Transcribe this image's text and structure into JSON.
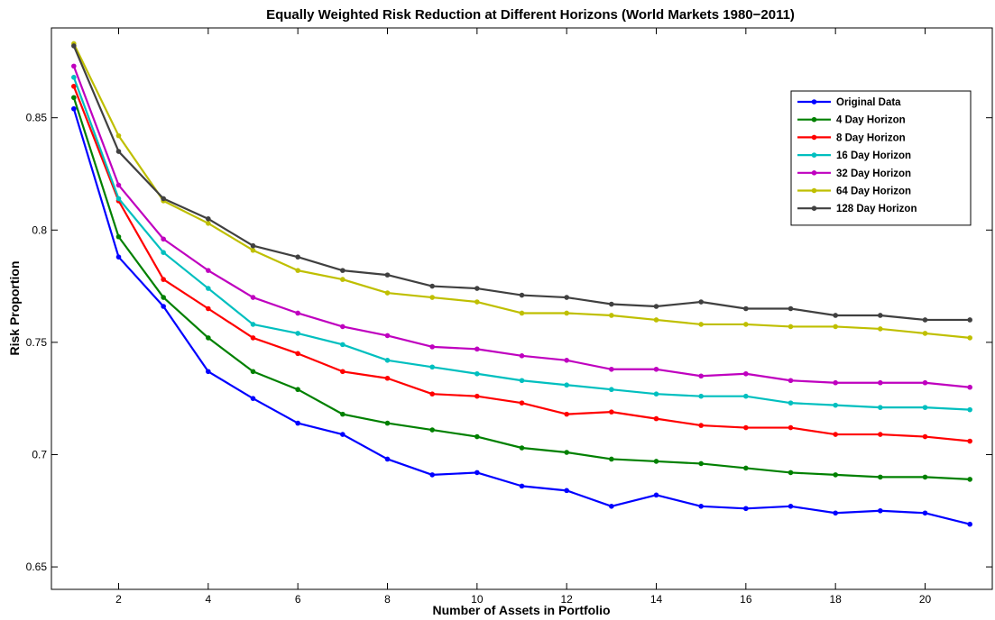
{
  "chart_data": {
    "type": "line",
    "title": "Equally Weighted Risk Reduction at Different Horizons (World Markets 1980−2011)",
    "xlabel": "Number of Assets in Portfolio",
    "ylabel": "Risk Proportion",
    "xlim": [
      0.5,
      21.5
    ],
    "ylim": [
      0.64,
      0.89
    ],
    "x_ticks": [
      2,
      4,
      6,
      8,
      10,
      12,
      14,
      16,
      18,
      20
    ],
    "x_tick_labels": [
      "2",
      "4",
      "6",
      "8",
      "10",
      "12",
      "14",
      "16",
      "18",
      "20"
    ],
    "y_ticks": [
      0.65,
      0.7,
      0.75,
      0.8,
      0.85
    ],
    "y_tick_labels": [
      "0.65",
      "0.7",
      "0.75",
      "0.8",
      "0.85"
    ],
    "grid": false,
    "legend_position": "top-right",
    "x": [
      1,
      2,
      3,
      4,
      5,
      6,
      7,
      8,
      9,
      10,
      11,
      12,
      13,
      14,
      15,
      16,
      17,
      18,
      19,
      20,
      21
    ],
    "series": [
      {
        "name": "Original Data",
        "color": "#0000ff",
        "values": [
          0.854,
          0.788,
          0.766,
          0.737,
          0.725,
          0.714,
          0.709,
          0.698,
          0.691,
          0.692,
          0.686,
          0.684,
          0.677,
          0.682,
          0.677,
          0.676,
          0.677,
          0.674,
          0.675,
          0.674,
          0.669
        ]
      },
      {
        "name": "4 Day Horizon",
        "color": "#008000",
        "values": [
          0.859,
          0.797,
          0.77,
          0.752,
          0.737,
          0.729,
          0.718,
          0.714,
          0.711,
          0.708,
          0.703,
          0.701,
          0.698,
          0.697,
          0.696,
          0.694,
          0.692,
          0.691,
          0.69,
          0.69,
          0.689
        ]
      },
      {
        "name": "8 Day Horizon",
        "color": "#ff0000",
        "values": [
          0.864,
          0.813,
          0.778,
          0.765,
          0.752,
          0.745,
          0.737,
          0.734,
          0.727,
          0.726,
          0.723,
          0.718,
          0.719,
          0.716,
          0.713,
          0.712,
          0.712,
          0.709,
          0.709,
          0.708,
          0.706
        ]
      },
      {
        "name": "16 Day Horizon",
        "color": "#00bfbf",
        "values": [
          0.868,
          0.814,
          0.79,
          0.774,
          0.758,
          0.754,
          0.749,
          0.742,
          0.739,
          0.736,
          0.733,
          0.731,
          0.729,
          0.727,
          0.726,
          0.726,
          0.723,
          0.722,
          0.721,
          0.721,
          0.72
        ]
      },
      {
        "name": "32 Day Horizon",
        "color": "#bf00bf",
        "values": [
          0.873,
          0.82,
          0.796,
          0.782,
          0.77,
          0.763,
          0.757,
          0.753,
          0.748,
          0.747,
          0.744,
          0.742,
          0.738,
          0.738,
          0.735,
          0.736,
          0.733,
          0.732,
          0.732,
          0.732,
          0.73
        ]
      },
      {
        "name": "64 Day Horizon",
        "color": "#bfbf00",
        "values": [
          0.883,
          0.842,
          0.813,
          0.803,
          0.791,
          0.782,
          0.778,
          0.772,
          0.77,
          0.768,
          0.763,
          0.763,
          0.762,
          0.76,
          0.758,
          0.758,
          0.757,
          0.757,
          0.756,
          0.754,
          0.752
        ]
      },
      {
        "name": "128 Day Horizon",
        "color": "#404040",
        "values": [
          0.882,
          0.835,
          0.814,
          0.805,
          0.793,
          0.788,
          0.782,
          0.78,
          0.775,
          0.774,
          0.771,
          0.77,
          0.767,
          0.766,
          0.768,
          0.765,
          0.765,
          0.762,
          0.762,
          0.76,
          0.76
        ]
      }
    ]
  }
}
